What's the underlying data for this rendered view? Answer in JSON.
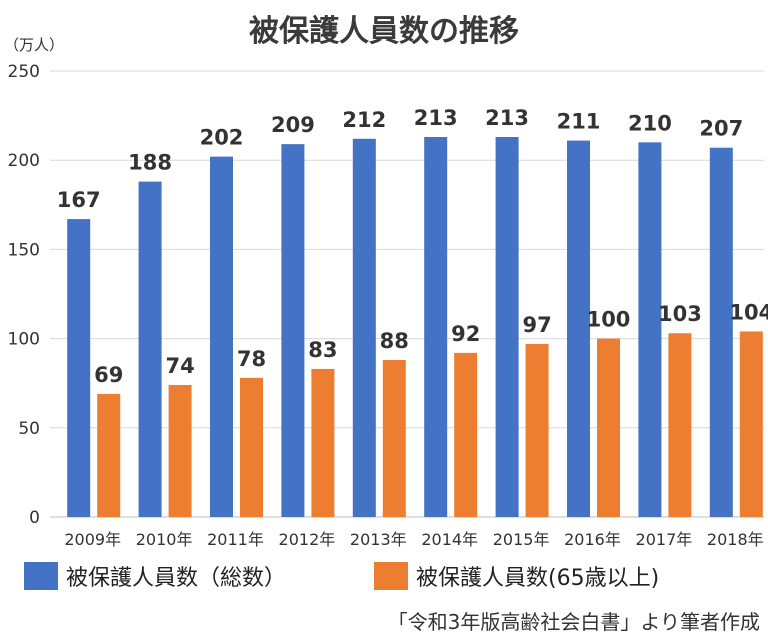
{
  "chart_data": {
    "type": "bar",
    "title": "被保護人員数の推移",
    "unit_label": "（万人）",
    "categories": [
      "2009年",
      "2010年",
      "2011年",
      "2012年",
      "2013年",
      "2014年",
      "2015年",
      "2016年",
      "2017年",
      "2018年"
    ],
    "series": [
      {
        "name": "被保護人員数（総数）",
        "color": "#4472c4",
        "values": [
          167,
          188,
          202,
          209,
          212,
          213,
          213,
          211,
          210,
          207
        ]
      },
      {
        "name": "被保護人員数(65歳以上)",
        "color": "#ed7d31",
        "values": [
          69,
          74,
          78,
          83,
          88,
          92,
          97,
          100,
          103,
          104
        ]
      }
    ],
    "ylim": [
      0,
      250
    ],
    "yticks": [
      0,
      50,
      100,
      150,
      200,
      250
    ],
    "grid": true,
    "legend_position": "bottom",
    "source": "「令和3年版高齢社会白書」より筆者作成"
  }
}
